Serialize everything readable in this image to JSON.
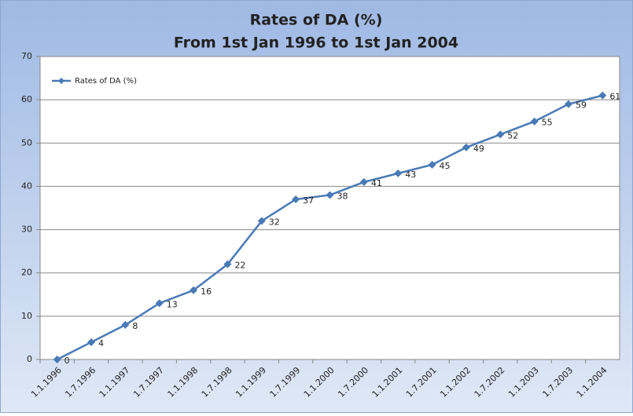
{
  "chart_data": {
    "type": "line",
    "title": "Rates of DA (%)",
    "subtitle": "From 1st Jan 1996 to 1st Jan 2004",
    "categories": [
      "1.1.1996",
      "1.7.1996",
      "1.1.1997",
      "1.7.1997",
      "1.1.1998",
      "1.7.1998",
      "1.1.1999",
      "1.7.1999",
      "1.1.2000",
      "1.7.2000",
      "1.1.2001",
      "1.7.2001",
      "1.1.2002",
      "1.7.2002",
      "1.1.2003",
      "1.7.2003",
      "1.1.2004"
    ],
    "series": [
      {
        "name": "Rates of DA (%)",
        "color": "#4a7ab5",
        "values": [
          0,
          4,
          8,
          13,
          16,
          22,
          32,
          37,
          38,
          41,
          43,
          45,
          49,
          52,
          55,
          59,
          61
        ]
      }
    ],
    "ylim": [
      0,
      70
    ],
    "yticks": [
      0,
      10,
      20,
      30,
      40,
      50,
      60,
      70
    ],
    "grid": true,
    "legend": "top-left",
    "data_labels": true
  }
}
